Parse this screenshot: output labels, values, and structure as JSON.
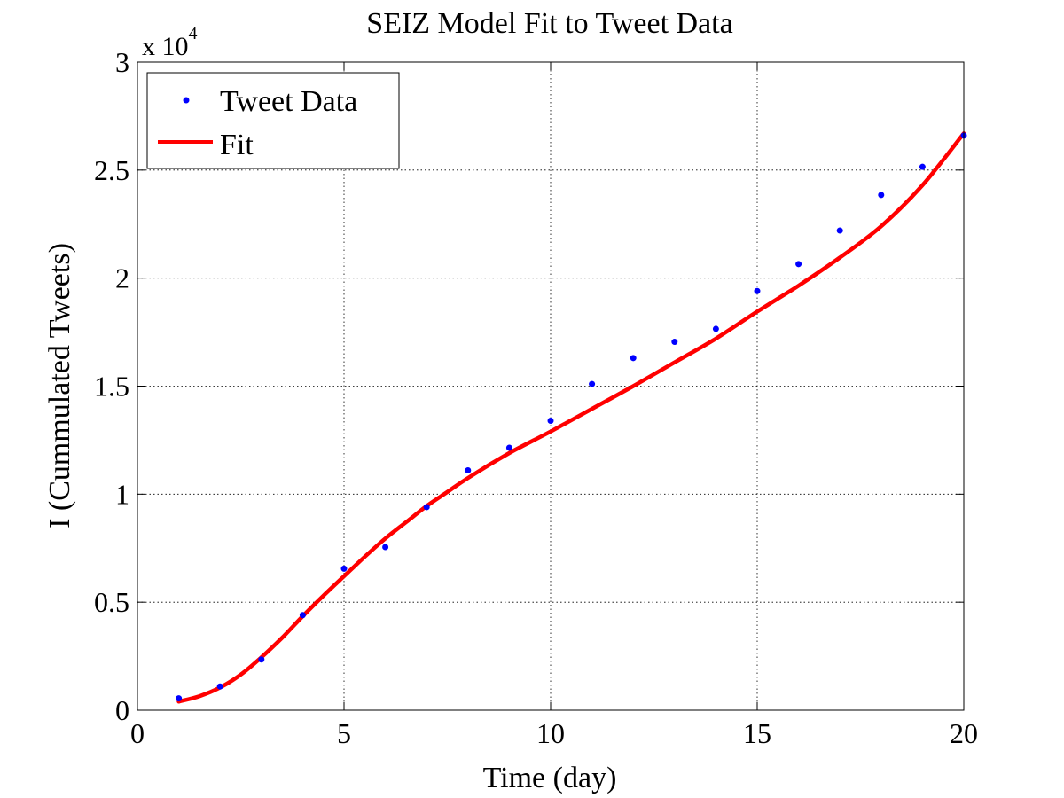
{
  "chart_data": {
    "type": "line",
    "title": "SEIZ Model Fit to Tweet Data",
    "xlabel": "Time (day)",
    "ylabel": "I (Cummulated Tweets)",
    "y_exponent_base": "x 10",
    "y_exponent_power": "4",
    "y_multiplier": 10000,
    "xlim": [
      0,
      20
    ],
    "ylim": [
      0,
      30000
    ],
    "x_ticks": [
      0,
      5,
      10,
      15,
      20
    ],
    "x_tick_labels": [
      "0",
      "5",
      "10",
      "15",
      "20"
    ],
    "y_ticks": [
      0,
      5000,
      10000,
      15000,
      20000,
      25000,
      30000
    ],
    "y_tick_labels": [
      "0",
      "0.5",
      "1",
      "1.5",
      "2",
      "2.5",
      "3"
    ],
    "grid": true,
    "legend_position": "top-left",
    "series": [
      {
        "name": "Tweet Data",
        "style": "markers",
        "color": "#0000ff",
        "x": [
          1,
          2,
          3,
          4,
          5,
          6,
          7,
          8,
          9,
          10,
          11,
          12,
          13,
          14,
          15,
          16,
          17,
          18,
          19,
          20
        ],
        "y": [
          550,
          1100,
          2350,
          4400,
          6550,
          7550,
          9400,
          11100,
          12150,
          13400,
          15100,
          16300,
          17050,
          17650,
          19400,
          20650,
          22200,
          23850,
          25150,
          26600
        ]
      },
      {
        "name": "Fit",
        "style": "line",
        "color": "#ff0000",
        "x": [
          1,
          1.5,
          2,
          2.5,
          3,
          3.5,
          4,
          4.5,
          5,
          5.5,
          6,
          6.5,
          7,
          7.5,
          8,
          9,
          10,
          11,
          12,
          13,
          14,
          15,
          16,
          17,
          18,
          19,
          20
        ],
        "y": [
          400,
          650,
          1050,
          1650,
          2450,
          3350,
          4350,
          5300,
          6200,
          7100,
          7950,
          8700,
          9450,
          10100,
          10750,
          11900,
          12900,
          13950,
          15000,
          16100,
          17200,
          18450,
          19650,
          20950,
          22400,
          24300,
          26700
        ]
      }
    ]
  }
}
